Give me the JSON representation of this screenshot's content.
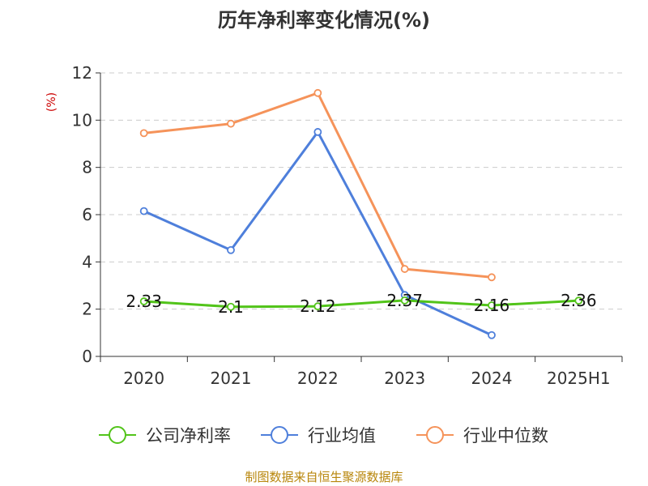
{
  "chart_data": {
    "type": "line",
    "title": "历年净利率变化情况(%)",
    "ylabel": "(%)",
    "categories": [
      "2020",
      "2021",
      "2022",
      "2023",
      "2024",
      "2025H1"
    ],
    "yticks": [
      0,
      2,
      4,
      6,
      8,
      10,
      12
    ],
    "ylim": [
      0,
      12
    ],
    "grid": true,
    "legend_position": "bottom",
    "series": [
      {
        "name": "公司净利率",
        "color": "#52c41a",
        "values": [
          2.33,
          2.1,
          2.12,
          2.37,
          2.16,
          2.36
        ],
        "labels": [
          "2.33",
          "2.1",
          "2.12",
          "2.37",
          "2.16",
          "2.36"
        ]
      },
      {
        "name": "行业均值",
        "color": "#4e7fdb",
        "values": [
          6.15,
          4.5,
          9.5,
          2.6,
          0.9,
          null
        ]
      },
      {
        "name": "行业中位数",
        "color": "#f5935a",
        "values": [
          9.45,
          9.85,
          11.15,
          3.7,
          3.35,
          null
        ]
      }
    ],
    "source": "制图数据来自恒生聚源数据库"
  }
}
